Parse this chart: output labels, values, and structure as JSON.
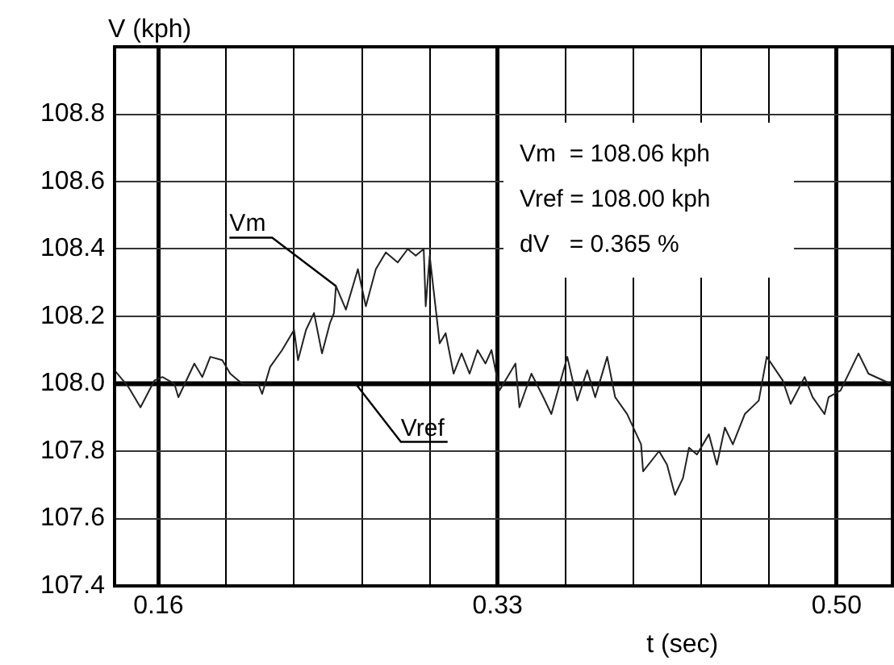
{
  "chart_data": {
    "type": "line",
    "xlabel": "t (sec)",
    "ylabel": "V (kph)",
    "xlim": [
      0.138,
      0.528
    ],
    "ylim": [
      107.4,
      109.0
    ],
    "xticks": [
      {
        "value": 0.16,
        "label": "0.16"
      },
      {
        "value": 0.194,
        "label": null
      },
      {
        "value": 0.228,
        "label": null
      },
      {
        "value": 0.262,
        "label": null
      },
      {
        "value": 0.296,
        "label": null
      },
      {
        "value": 0.33,
        "label": "0.33"
      },
      {
        "value": 0.364,
        "label": null
      },
      {
        "value": 0.398,
        "label": null
      },
      {
        "value": 0.432,
        "label": null
      },
      {
        "value": 0.466,
        "label": null
      },
      {
        "value": 0.5,
        "label": "0.50"
      }
    ],
    "yticks": [
      {
        "value": 107.4,
        "label": "107.4"
      },
      {
        "value": 107.6,
        "label": "107.6"
      },
      {
        "value": 107.8,
        "label": "107.8"
      },
      {
        "value": 108.0,
        "label": "108.0"
      },
      {
        "value": 108.2,
        "label": "108.2"
      },
      {
        "value": 108.4,
        "label": "108.4"
      },
      {
        "value": 108.6,
        "label": "108.6"
      },
      {
        "value": 108.8,
        "label": "108.8"
      }
    ],
    "grid": true,
    "legend": false,
    "marker": "none",
    "line_style": "solid",
    "annotations": [
      "Vm  = 108.06 kph",
      "Vref = 108.00 kph",
      "dV   = 0.365 %"
    ],
    "series": [
      {
        "name": "Vm",
        "color": "#222222",
        "x": [
          0.138,
          0.145,
          0.151,
          0.158,
          0.162,
          0.168,
          0.17,
          0.178,
          0.182,
          0.186,
          0.192,
          0.196,
          0.202,
          0.21,
          0.212,
          0.216,
          0.222,
          0.228,
          0.23,
          0.234,
          0.238,
          0.242,
          0.246,
          0.248,
          0.249,
          0.254,
          0.26,
          0.264,
          0.269,
          0.274,
          0.28,
          0.285,
          0.289,
          0.293,
          0.294,
          0.296,
          0.301,
          0.304,
          0.308,
          0.312,
          0.316,
          0.32,
          0.324,
          0.327,
          0.331,
          0.339,
          0.341,
          0.347,
          0.353,
          0.357,
          0.365,
          0.37,
          0.375,
          0.379,
          0.385,
          0.389,
          0.395,
          0.402,
          0.403,
          0.411,
          0.415,
          0.419,
          0.423,
          0.426,
          0.43,
          0.436,
          0.44,
          0.444,
          0.448,
          0.454,
          0.461,
          0.465,
          0.473,
          0.477,
          0.484,
          0.488,
          0.494,
          0.496,
          0.502,
          0.511,
          0.516,
          0.527
        ],
        "values": [
          108.04,
          107.99,
          107.93,
          108.01,
          108.02,
          108.0,
          107.96,
          108.06,
          108.02,
          108.08,
          108.07,
          108.03,
          108.0,
          108.0,
          107.97,
          108.05,
          108.1,
          108.16,
          108.07,
          108.16,
          108.21,
          108.09,
          108.18,
          108.21,
          108.29,
          108.22,
          108.34,
          108.23,
          108.34,
          108.39,
          108.36,
          108.4,
          108.38,
          108.4,
          108.23,
          108.38,
          108.12,
          108.15,
          108.03,
          108.09,
          108.03,
          108.1,
          108.06,
          108.1,
          107.98,
          108.06,
          107.93,
          108.03,
          107.96,
          107.91,
          108.08,
          107.95,
          108.04,
          107.96,
          108.08,
          107.96,
          107.91,
          107.82,
          107.74,
          107.8,
          107.76,
          107.67,
          107.72,
          107.81,
          107.79,
          107.85,
          107.76,
          107.87,
          107.82,
          107.91,
          107.95,
          108.08,
          108.01,
          107.94,
          108.02,
          107.96,
          107.91,
          107.96,
          107.98,
          108.09,
          108.03,
          108.0
        ]
      },
      {
        "name": "Vref",
        "color": "#000000",
        "x": [
          0.138,
          0.528
        ],
        "values": [
          108.0,
          108.0
        ]
      }
    ]
  }
}
